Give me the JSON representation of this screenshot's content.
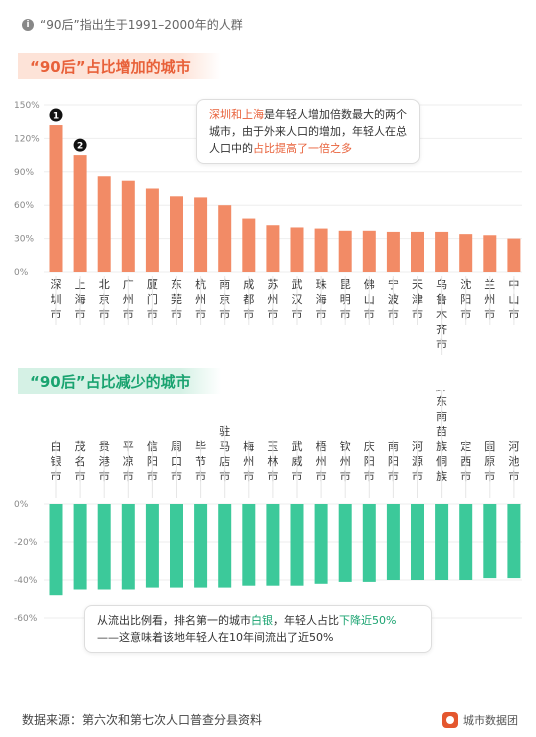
{
  "note": "“90后”指出生于1991–2000年的人群",
  "source": "数据来源：第六次和第七次人口普查分县资料",
  "brand": "城市数据团",
  "callout_top": {
    "p1": "深圳和上海",
    "p2": "是年轻人增加倍数最大的两个城市，由于外来人口的增加，年轻人在总人口中的",
    "p3": "占比提高了一倍之多"
  },
  "callout_bottom": {
    "p1": "从流出比例看，排名第一的城市",
    "p2": "白银",
    "p3": "，年轻人占比",
    "p4": "下降近50%",
    "p5": "——这意味着该地年轻人在10年间流出了近50%"
  },
  "colors": {
    "increase": "#f28b66",
    "decrease": "#3cc99a"
  },
  "chart_data": [
    {
      "type": "bar",
      "title": "“90后”占比增加的城市",
      "categories": [
        "深圳市",
        "上海市",
        "北京市",
        "广州市",
        "厦门市",
        "东莞市",
        "杭州市",
        "南京市",
        "成都市",
        "苏州市",
        "武汉市",
        "珠海市",
        "昆明市",
        "佛山市",
        "宁波市",
        "天津市",
        "乌鲁木齐市",
        "沈阳市",
        "兰州市",
        "中山市"
      ],
      "values": [
        132,
        105,
        86,
        82,
        75,
        68,
        67,
        60,
        48,
        42,
        40,
        39,
        37,
        37,
        36,
        36,
        36,
        34,
        33,
        30
      ],
      "yticks": [
        "150%",
        "120%",
        "90%",
        "60%",
        "30%",
        "0%"
      ],
      "ylim": [
        0,
        150
      ],
      "unit": "%",
      "rank_badges": [
        "1",
        "2"
      ]
    },
    {
      "type": "bar",
      "title": "“90后”占比减少的城市",
      "categories": [
        "白银市",
        "茂名市",
        "贵港市",
        "平凉市",
        "信阳市",
        "周口市",
        "毕节市",
        "驻马店市",
        "梅州市",
        "玉林市",
        "武威市",
        "梧州市",
        "钦州市",
        "庆阳市",
        "南阳市",
        "河源市",
        "黔东南苗族侗族",
        "定西市",
        "固原市",
        "河池市"
      ],
      "values": [
        -48,
        -45,
        -45,
        -45,
        -44,
        -44,
        -44,
        -44,
        -43,
        -43,
        -43,
        -42,
        -41,
        -41,
        -40,
        -40,
        -40,
        -40,
        -39,
        -39
      ],
      "yticks": [
        "0%",
        "-20%",
        "-40%",
        "-60%"
      ],
      "ylim": [
        -60,
        0
      ],
      "unit": "%"
    }
  ]
}
